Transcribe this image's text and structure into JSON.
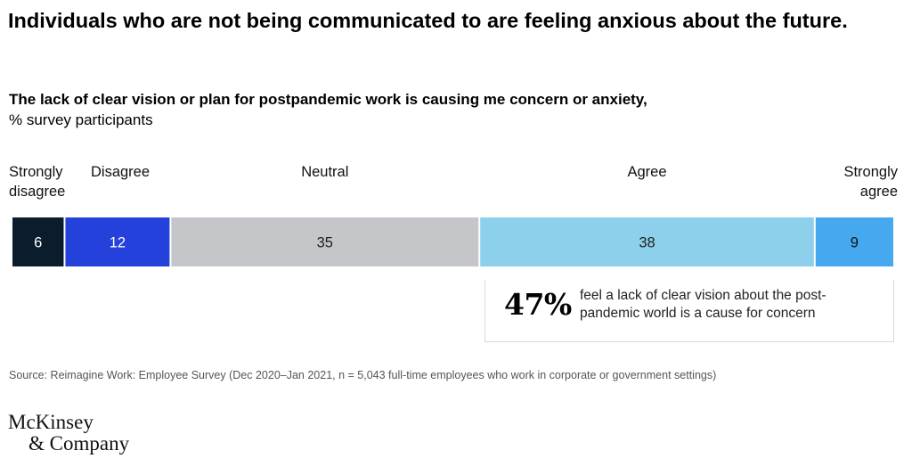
{
  "title": "Individuals who are not being communicated to are feeling anxious about the future.",
  "subtitle_bold": "The lack of clear vision or plan for postpandemic work is causing me concern or anxiety,",
  "subtitle_rest": "% survey participants",
  "chart_data": {
    "type": "bar",
    "orientation": "horizontal-stacked",
    "title": "",
    "xlabel": "",
    "ylabel": "",
    "categories": [
      "Strongly disagree",
      "Disagree",
      "Neutral",
      "Agree",
      "Strongly agree"
    ],
    "label_lines": [
      [
        "Strongly",
        "disagree"
      ],
      [
        "Disagree"
      ],
      [
        "Neutral"
      ],
      [
        "Agree"
      ],
      [
        "Strongly",
        "agree"
      ]
    ],
    "values": [
      6,
      12,
      35,
      38,
      9
    ],
    "colors": [
      "#0b1c2c",
      "#2442db",
      "#c4c6ca",
      "#8dd0ec",
      "#46a9ef"
    ],
    "label_colors": [
      "#ffffff",
      "#ffffff",
      "#222222",
      "#222222",
      "#111111"
    ],
    "xlim": [
      0,
      100
    ],
    "grid": false
  },
  "callout": {
    "percent": "47%",
    "text": "feel a lack of clear vision about the post-pandemic world is a cause for concern"
  },
  "source": "Source: Reimagine Work: Employee Survey (Dec 2020–Jan 2021, n = 5,043 full-time employees who work in corporate or government settings)",
  "logo": {
    "line1": "McKinsey",
    "line2": "& Company"
  }
}
